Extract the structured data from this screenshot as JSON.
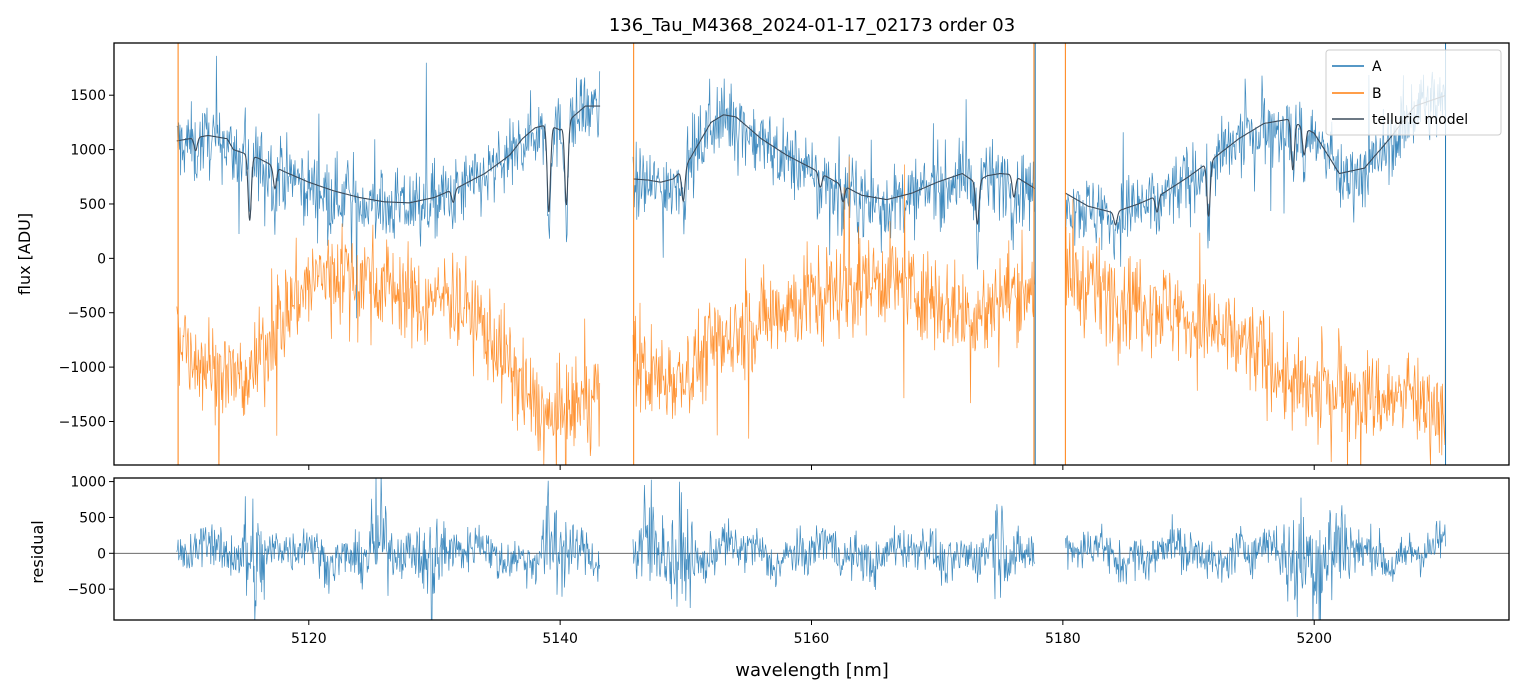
{
  "chart_data": [
    {
      "type": "line",
      "title": "136_Tau_M4368_2024-01-17_02173  order 03",
      "xlabel": "",
      "ylabel": "flux [ADU]",
      "xlim": [
        5104.5,
        5215.5
      ],
      "ylim": [
        -1900,
        1980
      ],
      "yticks": [
        -1500,
        -1000,
        -500,
        0,
        500,
        1000,
        1500
      ],
      "yticklabels": [
        "−1500",
        "−1000",
        "−500",
        "0",
        "500",
        "1000",
        "1500"
      ],
      "xticks": [
        5120,
        5140,
        5160,
        5180,
        5200
      ],
      "xticklabels_shown": false,
      "grid": false,
      "legend": {
        "placement": "top-right",
        "entries": [
          "A",
          "B",
          "telluric model"
        ]
      },
      "segments": [
        [
          5109.5,
          5143.2
        ],
        [
          5145.8,
          5177.8
        ],
        [
          5180.2,
          5210.5
        ]
      ],
      "series": [
        {
          "name": "A",
          "color": "#1f77b4",
          "rendering": "noisy spectrum (~0.05 nm sampling), envelope = telluric model",
          "noise_amplitude": 170
        },
        {
          "name": "B",
          "color": "#ff7f0e",
          "x": [
            5109.5,
            5111,
            5113,
            5115,
            5117,
            5119,
            5121,
            5123,
            5125,
            5127,
            5129,
            5131,
            5133,
            5135,
            5137,
            5139,
            5141,
            5143.2,
            5145.8,
            5148,
            5150,
            5152,
            5154,
            5156,
            5158,
            5160,
            5162,
            5164,
            5166,
            5168,
            5170,
            5172,
            5174,
            5176,
            5177.8,
            5180.2,
            5182,
            5184,
            5186,
            5188,
            5190,
            5192,
            5194,
            5196,
            5198,
            5200,
            5202,
            5204,
            5206,
            5208,
            5210.5
          ],
          "y": [
            -650,
            -900,
            -1050,
            -1150,
            -700,
            -350,
            -150,
            -100,
            -200,
            -280,
            -450,
            -300,
            -500,
            -800,
            -1200,
            -1500,
            -1400,
            -1200,
            -1000,
            -1100,
            -1050,
            -800,
            -700,
            -560,
            -420,
            -400,
            -280,
            -220,
            -180,
            -280,
            -380,
            -520,
            -500,
            -280,
            -240,
            -200,
            -260,
            -320,
            -360,
            -450,
            -560,
            -660,
            -760,
            -900,
            -1150,
            -1300,
            -1150,
            -1260,
            -1300,
            -1300,
            -1400
          ],
          "noise_amplitude": 220
        },
        {
          "name": "telluric model",
          "color": "#3b4b5b",
          "x": [
            5109.5,
            5112,
            5113.5,
            5114,
            5116,
            5118,
            5120,
            5122,
            5124,
            5126,
            5128,
            5130,
            5132,
            5134,
            5136,
            5137,
            5138,
            5139,
            5140,
            5141,
            5142,
            5143.2,
            5145.8,
            5147,
            5148,
            5149,
            5150,
            5151,
            5152,
            5153,
            5154,
            5155,
            5156,
            5158,
            5160,
            5162,
            5164,
            5166,
            5168,
            5170,
            5172,
            5173,
            5174,
            5175,
            5176,
            5177.8,
            5180.2,
            5182,
            5184,
            5186,
            5188,
            5190,
            5192,
            5194,
            5196,
            5198,
            5200,
            5202,
            5204,
            5206,
            5208,
            5210.5
          ],
          "y": [
            1080,
            1130,
            1100,
            1000,
            920,
            800,
            700,
            620,
            560,
            520,
            510,
            560,
            660,
            780,
            950,
            1100,
            1200,
            1230,
            1180,
            1300,
            1400,
            1400,
            730,
            720,
            700,
            730,
            850,
            1050,
            1250,
            1320,
            1300,
            1200,
            1100,
            950,
            830,
            700,
            580,
            540,
            600,
            700,
            780,
            700,
            760,
            780,
            770,
            640,
            600,
            480,
            420,
            500,
            600,
            750,
            920,
            1100,
            1240,
            1280,
            1150,
            780,
            830,
            1100,
            1400,
            1500
          ],
          "dips": [
            {
              "x": 5111.0,
              "depth": 120
            },
            {
              "x": 5115.3,
              "depth": 600
            },
            {
              "x": 5117.3,
              "depth": 200
            },
            {
              "x": 5131.5,
              "depth": 120
            },
            {
              "x": 5139.1,
              "depth": 800
            },
            {
              "x": 5140.5,
              "depth": 750
            },
            {
              "x": 5149.8,
              "depth": 300
            },
            {
              "x": 5160.7,
              "depth": 130
            },
            {
              "x": 5162.5,
              "depth": 150
            },
            {
              "x": 5173.2,
              "depth": 400
            },
            {
              "x": 5176.1,
              "depth": 200
            },
            {
              "x": 5184.2,
              "depth": 120
            },
            {
              "x": 5187.5,
              "depth": 150
            },
            {
              "x": 5191.6,
              "depth": 500
            },
            {
              "x": 5198.3,
              "depth": 450
            },
            {
              "x": 5199.2,
              "depth": 250
            }
          ]
        }
      ],
      "vertical_spikes": [
        {
          "x": 5109.6,
          "series": "B"
        },
        {
          "x": 5145.85,
          "series": "B"
        },
        {
          "x": 5177.7,
          "series": "B"
        },
        {
          "x": 5177.8,
          "series": "A"
        },
        {
          "x": 5180.2,
          "series": "B"
        },
        {
          "x": 5210.45,
          "series": "A"
        }
      ]
    },
    {
      "type": "line",
      "title": "",
      "xlabel": "wavelength [nm]",
      "ylabel": "residual",
      "xlim": [
        5104.5,
        5215.5
      ],
      "ylim": [
        -930,
        1050
      ],
      "yticks": [
        -500,
        0,
        500,
        1000
      ],
      "yticklabels": [
        "−500",
        "0",
        "500",
        "1000"
      ],
      "xticks": [
        5120,
        5140,
        5160,
        5180,
        5200
      ],
      "xticklabels": [
        "5120",
        "5140",
        "5160",
        "5180",
        "5200"
      ],
      "grid": false,
      "zero_line": true,
      "segments": [
        [
          5109.5,
          5143.2
        ],
        [
          5145.8,
          5177.8
        ],
        [
          5180.2,
          5210.5
        ]
      ],
      "series": [
        {
          "name": "A",
          "color": "#1f77b4",
          "rendering": "noisy residual (~0.05 nm sampling)",
          "noise_amplitude": 280,
          "bursts": [
            {
              "x": 5115.5,
              "amp": 700
            },
            {
              "x": 5125.5,
              "amp": 450
            },
            {
              "x": 5130.0,
              "amp": 520
            },
            {
              "x": 5139.5,
              "amp": 600
            },
            {
              "x": 5147.0,
              "amp": 650
            },
            {
              "x": 5149.5,
              "amp": 550
            },
            {
              "x": 5175.0,
              "amp": 400
            },
            {
              "x": 5198.5,
              "amp": 550
            },
            {
              "x": 5200.5,
              "amp": 650
            },
            {
              "x": 5202.0,
              "amp": 500
            }
          ]
        }
      ]
    }
  ]
}
